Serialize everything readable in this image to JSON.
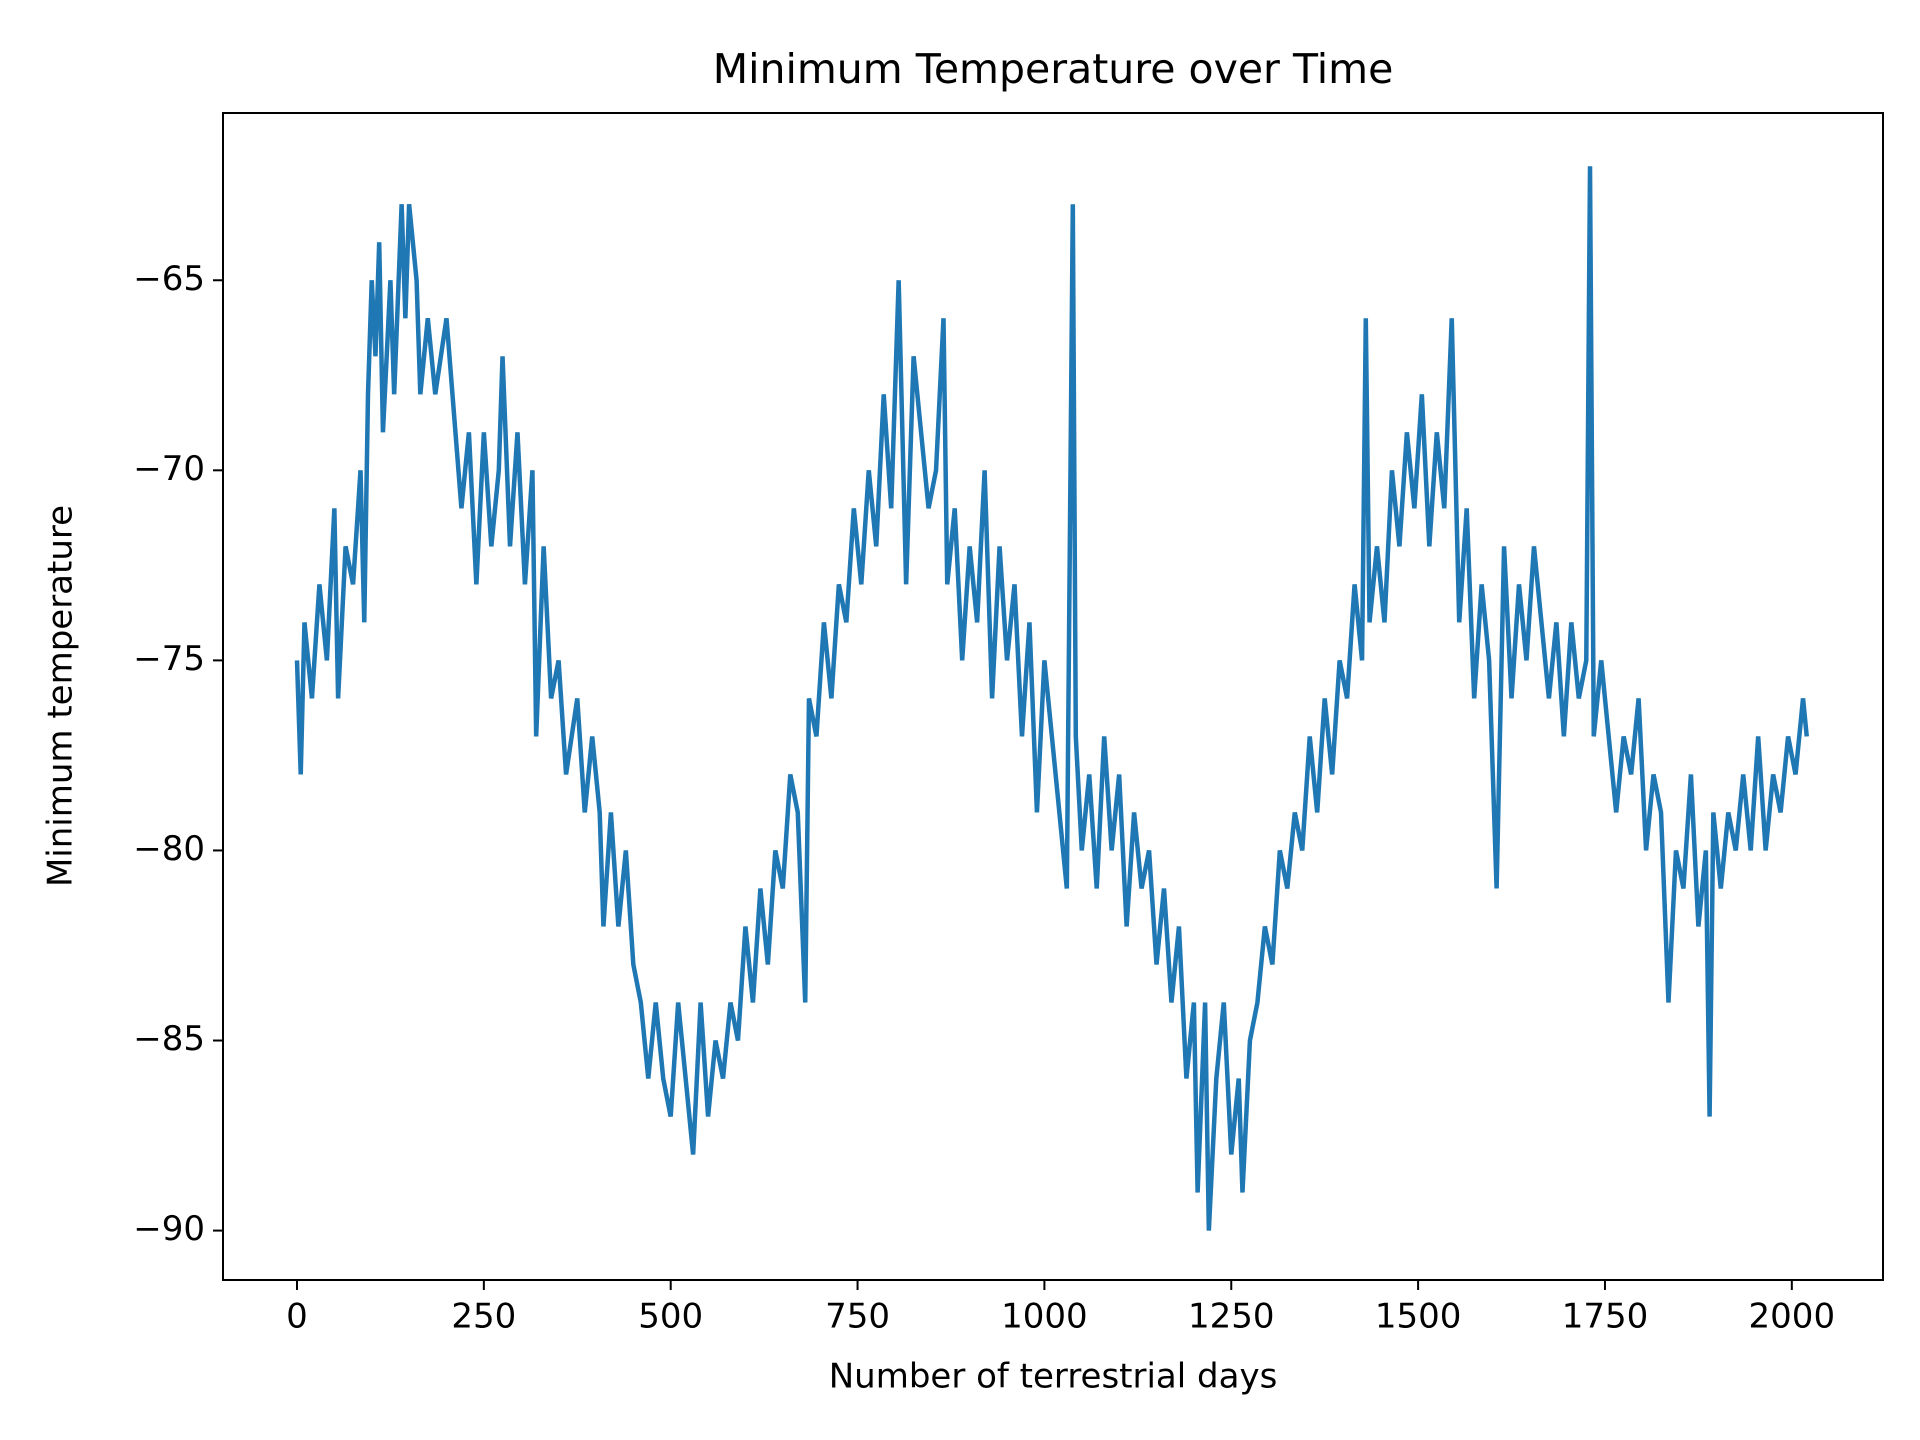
{
  "chart_data": {
    "type": "line",
    "title": "Minimum Temperature over Time",
    "x_label": "Number of terrestrial days",
    "y_label": "Minimum temperature",
    "color": "#1f77b4",
    "xlim": [
      -99,
      2122
    ],
    "ylim": [
      -91.3,
      -60.6
    ],
    "xticks": [
      0,
      250,
      500,
      750,
      1000,
      1250,
      1500,
      1750,
      2000
    ],
    "yticks": [
      {
        "value": -90,
        "label": "−90"
      },
      {
        "value": -85,
        "label": "−85"
      },
      {
        "value": -80,
        "label": "−80"
      },
      {
        "value": -75,
        "label": "−75"
      },
      {
        "value": -70,
        "label": "−70"
      },
      {
        "value": -65,
        "label": "−65"
      }
    ],
    "x": [
      0,
      5,
      10,
      20,
      30,
      40,
      50,
      55,
      65,
      75,
      85,
      90,
      95,
      100,
      105,
      110,
      115,
      125,
      130,
      140,
      145,
      150,
      160,
      165,
      175,
      185,
      200,
      220,
      230,
      240,
      250,
      260,
      270,
      275,
      285,
      295,
      305,
      315,
      320,
      330,
      340,
      350,
      360,
      375,
      385,
      395,
      405,
      410,
      420,
      430,
      440,
      450,
      460,
      470,
      480,
      490,
      500,
      510,
      520,
      530,
      540,
      550,
      560,
      570,
      580,
      590,
      600,
      610,
      620,
      630,
      640,
      650,
      660,
      670,
      680,
      685,
      695,
      705,
      715,
      725,
      735,
      745,
      755,
      765,
      775,
      785,
      795,
      805,
      815,
      825,
      835,
      845,
      855,
      865,
      870,
      880,
      890,
      900,
      910,
      920,
      930,
      940,
      950,
      960,
      970,
      980,
      990,
      1000,
      1010,
      1020,
      1030,
      1038,
      1042,
      1050,
      1060,
      1070,
      1080,
      1090,
      1100,
      1110,
      1120,
      1130,
      1140,
      1150,
      1160,
      1170,
      1180,
      1190,
      1200,
      1205,
      1215,
      1220,
      1230,
      1240,
      1250,
      1260,
      1265,
      1275,
      1285,
      1295,
      1305,
      1315,
      1325,
      1335,
      1345,
      1355,
      1365,
      1375,
      1385,
      1395,
      1405,
      1415,
      1425,
      1430,
      1435,
      1445,
      1455,
      1465,
      1475,
      1485,
      1495,
      1505,
      1515,
      1525,
      1535,
      1545,
      1555,
      1565,
      1575,
      1585,
      1595,
      1605,
      1615,
      1625,
      1635,
      1645,
      1655,
      1665,
      1675,
      1685,
      1695,
      1705,
      1715,
      1725,
      1730,
      1735,
      1745,
      1755,
      1765,
      1775,
      1785,
      1795,
      1805,
      1815,
      1825,
      1835,
      1845,
      1855,
      1865,
      1875,
      1885,
      1890,
      1895,
      1905,
      1915,
      1925,
      1935,
      1945,
      1955,
      1965,
      1975,
      1985,
      1995,
      2005,
      2015,
      2020
    ],
    "values": [
      -75,
      -78,
      -74,
      -76,
      -73,
      -75,
      -71,
      -76,
      -72,
      -73,
      -70,
      -74,
      -68,
      -65,
      -67,
      -64,
      -69,
      -65,
      -68,
      -63,
      -66,
      -63,
      -65,
      -68,
      -66,
      -68,
      -66,
      -71,
      -69,
      -73,
      -69,
      -72,
      -70,
      -67,
      -72,
      -69,
      -73,
      -70,
      -77,
      -72,
      -76,
      -75,
      -78,
      -76,
      -79,
      -77,
      -79,
      -82,
      -79,
      -82,
      -80,
      -83,
      -84,
      -86,
      -84,
      -86,
      -87,
      -84,
      -86,
      -88,
      -84,
      -87,
      -85,
      -86,
      -84,
      -85,
      -82,
      -84,
      -81,
      -83,
      -80,
      -81,
      -78,
      -79,
      -84,
      -76,
      -77,
      -74,
      -76,
      -73,
      -74,
      -71,
      -73,
      -70,
      -72,
      -68,
      -71,
      -65,
      -73,
      -67,
      -69,
      -71,
      -70,
      -66,
      -73,
      -71,
      -75,
      -72,
      -74,
      -70,
      -76,
      -72,
      -75,
      -73,
      -77,
      -74,
      -79,
      -75,
      -77,
      -79,
      -81,
      -63,
      -77,
      -80,
      -78,
      -81,
      -77,
      -80,
      -78,
      -82,
      -79,
      -81,
      -80,
      -83,
      -81,
      -84,
      -82,
      -86,
      -84,
      -89,
      -84,
      -90,
      -86,
      -84,
      -88,
      -86,
      -89,
      -85,
      -84,
      -82,
      -83,
      -80,
      -81,
      -79,
      -80,
      -77,
      -79,
      -76,
      -78,
      -75,
      -76,
      -73,
      -75,
      -66,
      -74,
      -72,
      -74,
      -70,
      -72,
      -69,
      -71,
      -68,
      -72,
      -69,
      -71,
      -66,
      -74,
      -71,
      -76,
      -73,
      -75,
      -81,
      -72,
      -76,
      -73,
      -75,
      -72,
      -74,
      -76,
      -74,
      -77,
      -74,
      -76,
      -75,
      -62,
      -77,
      -75,
      -77,
      -79,
      -77,
      -78,
      -76,
      -80,
      -78,
      -79,
      -84,
      -80,
      -81,
      -78,
      -82,
      -80,
      -87,
      -79,
      -81,
      -79,
      -80,
      -78,
      -80,
      -77,
      -80,
      -78,
      -79,
      -77,
      -78,
      -76,
      -77
    ]
  }
}
